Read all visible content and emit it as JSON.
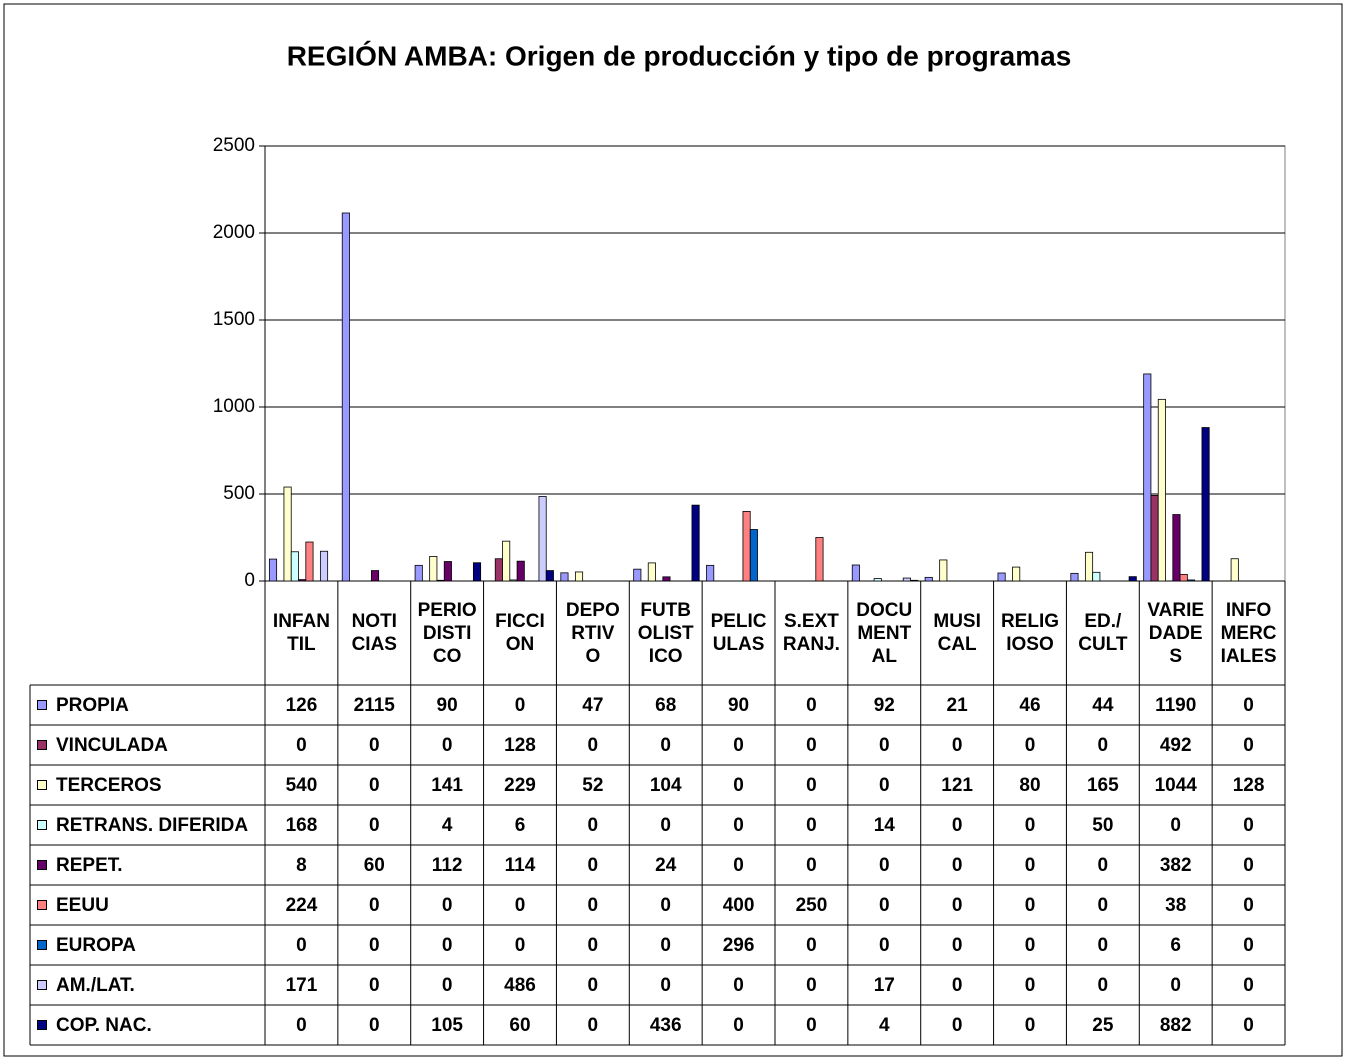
{
  "chart_data": {
    "type": "bar",
    "title": "REGIÓN AMBA: Origen de producción y tipo de programas",
    "categories": [
      "INFAN\nTIL",
      "NOTI\nCIAS",
      "PERIO\nDISTI\nCO",
      "FICCI\nON",
      "DEPO\nRTIV\nO",
      "FUTB\nOLIST\nICO",
      "PELIC\nULAS",
      "S.EXT\nRANJ.",
      "DOCU\nMENT\nAL",
      "MUSI\nCAL",
      "RELIG\nIOSO",
      "ED./\nCULT",
      "VARIE\nDADE\nS",
      "INFO\nMERC\nIALES"
    ],
    "series": [
      {
        "name": "PROPIA",
        "color": "#9999ff",
        "values": [
          126,
          2115,
          90,
          0,
          47,
          68,
          90,
          0,
          92,
          21,
          46,
          44,
          1190,
          0
        ]
      },
      {
        "name": "VINCULADA",
        "color": "#993366",
        "values": [
          0,
          0,
          0,
          128,
          0,
          0,
          0,
          0,
          0,
          0,
          0,
          0,
          492,
          0
        ]
      },
      {
        "name": "TERCEROS",
        "color": "#ffffcc",
        "values": [
          540,
          0,
          141,
          229,
          52,
          104,
          0,
          0,
          0,
          121,
          80,
          165,
          1044,
          128
        ]
      },
      {
        "name": "RETRANS. DIFERIDA",
        "color": "#ccffff",
        "values": [
          168,
          0,
          4,
          6,
          0,
          0,
          0,
          0,
          14,
          0,
          0,
          50,
          0,
          0
        ]
      },
      {
        "name": " REPET.",
        "color": "#660066",
        "values": [
          8,
          60,
          112,
          114,
          0,
          24,
          0,
          0,
          0,
          0,
          0,
          0,
          382,
          0
        ]
      },
      {
        "name": "EEUU",
        "color": "#ff8080",
        "values": [
          224,
          0,
          0,
          0,
          0,
          0,
          400,
          250,
          0,
          0,
          0,
          0,
          38,
          0
        ]
      },
      {
        "name": "EUROPA",
        "color": "#0066cc",
        "values": [
          0,
          0,
          0,
          0,
          0,
          0,
          296,
          0,
          0,
          0,
          0,
          0,
          6,
          0
        ]
      },
      {
        "name": "AM./LAT.",
        "color": "#ccccff",
        "values": [
          171,
          0,
          0,
          486,
          0,
          0,
          0,
          0,
          17,
          0,
          0,
          0,
          0,
          0
        ]
      },
      {
        "name": "COP. NAC.",
        "color": "#000080",
        "values": [
          0,
          0,
          105,
          60,
          0,
          436,
          0,
          0,
          4,
          0,
          0,
          25,
          882,
          0
        ]
      }
    ],
    "ylim": [
      0,
      2500
    ],
    "yticks": [
      0,
      500,
      1000,
      1500,
      2000,
      2500
    ],
    "grid": true
  }
}
